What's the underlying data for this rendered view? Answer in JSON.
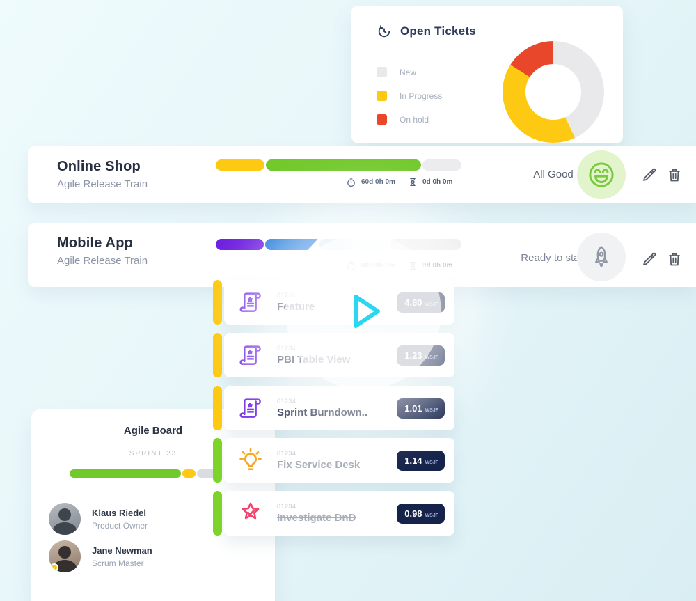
{
  "open_tickets": {
    "title": "Open Tickets",
    "legend": [
      {
        "label": "New",
        "color": "#e9e9ec",
        "value": 43
      },
      {
        "label": "In Progress",
        "color": "#fdc913",
        "value": 41
      },
      {
        "label": "On hold",
        "color": "#e8472b",
        "value": 16
      }
    ]
  },
  "chart_data": {
    "type": "pie",
    "title": "Open Tickets",
    "categories": [
      "New",
      "In Progress",
      "On hold"
    ],
    "values": [
      43,
      41,
      16
    ],
    "colors": [
      "#e9e9ec",
      "#fdc913",
      "#e8472b"
    ],
    "legend_position": "left"
  },
  "trains": [
    {
      "title": "Online Shop",
      "subtitle": "Agile Release Train",
      "elapsed": "60d 0h 0m",
      "remaining": "0d 0h 0m",
      "status": "All Good",
      "bar": [
        {
          "color": "#fdc913",
          "pct": 20
        },
        {
          "color": "#72c92c",
          "pct": 64
        },
        {
          "color": "#ececee",
          "pct": 16
        }
      ]
    },
    {
      "title": "Mobile App",
      "subtitle": "Agile Release Train",
      "elapsed": "00d 0h 0m",
      "remaining": "0d 0h 0m",
      "status": "Ready to start",
      "bar": [
        {
          "color": "#6d1fe0",
          "pct": 20
        },
        {
          "color": "#0f6fd8",
          "pct": 22
        },
        {
          "color": "#d9e9f8",
          "pct": 14
        },
        {
          "color": "#eef4f8",
          "pct": 14
        },
        {
          "color": "#ececee",
          "pct": 30
        }
      ]
    }
  ],
  "tickets": [
    {
      "id": "01234",
      "title": "Feature",
      "score": "4.80",
      "unit": "WSJF",
      "done": false
    },
    {
      "id": "01234",
      "title": "PBI Table View",
      "score": "1.23",
      "unit": "WSJF",
      "done": false
    },
    {
      "id": "01234",
      "title": "Sprint Burndown..",
      "score": "1.01",
      "unit": "WSJF",
      "done": false
    },
    {
      "id": "01234",
      "title": "Fix Service Desk",
      "score": "1.14",
      "unit": "WSJF",
      "done": true
    },
    {
      "id": "01234",
      "title": "Investigate DnD",
      "score": "0.98",
      "unit": "WSJF",
      "done": true
    }
  ],
  "board": {
    "title": "Agile Board",
    "sprint": "SPRINT 23",
    "bar": [
      {
        "color": "#72c92c",
        "pct": 75
      },
      {
        "color": "#fdc913",
        "pct": 9
      },
      {
        "color": "#d9dce1",
        "pct": 16
      }
    ],
    "members": [
      {
        "name": "Klaus Riedel",
        "role": "Product Owner"
      },
      {
        "name": "Jane Newman",
        "role": "Scrum Master"
      }
    ]
  }
}
